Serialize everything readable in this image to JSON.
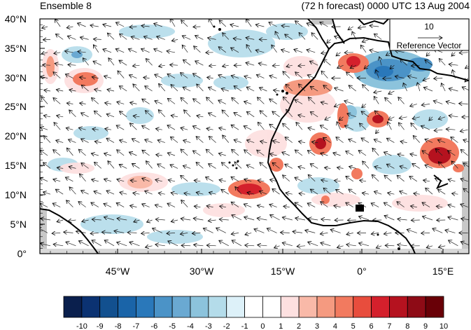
{
  "header": {
    "panel_title": "Ensemble 8",
    "forecast_label": "(72 h forecast) 0000 UTC 13 Aug 2004"
  },
  "map": {
    "lat_ticks": [
      "40°N",
      "35°N",
      "30°N",
      "25°N",
      "20°N",
      "15°N",
      "10°N",
      "5°N",
      "0°"
    ],
    "lon_ticks": [
      "45°W",
      "30°W",
      "15°W",
      "0°",
      "15°E"
    ],
    "reference_vector": {
      "magnitude": "10",
      "label": "Reference Vector"
    },
    "field_colors": {
      "strong_positive": "#d7191c",
      "positive": "#f4a582",
      "weak_positive": "#fddbc7",
      "weak_negative": "#d1e5f0",
      "negative": "#92c5de",
      "strong_negative": "#2166ac",
      "land_outline": "#000000",
      "missing": "#c8c8c8"
    }
  },
  "colorbar": {
    "labels": [
      "-10",
      "-9",
      "-8",
      "-7",
      "-6",
      "-5",
      "-4",
      "-3",
      "-2",
      "-1",
      "0",
      "1",
      "2",
      "3",
      "4",
      "5",
      "6",
      "7",
      "8",
      "9",
      "10"
    ],
    "colors": [
      "#0a1f4d",
      "#0b3272",
      "#12508f",
      "#1a64a8",
      "#2a78ba",
      "#4b93c7",
      "#6aa9d2",
      "#8cc3dc",
      "#b4dcea",
      "#ddf1f9",
      "#ffffff",
      "#ffffff",
      "#fde0e0",
      "#f9b9a8",
      "#f59a80",
      "#f27a5f",
      "#e84d3d",
      "#d4202c",
      "#b5121f",
      "#8e0b16",
      "#690007"
    ]
  }
}
